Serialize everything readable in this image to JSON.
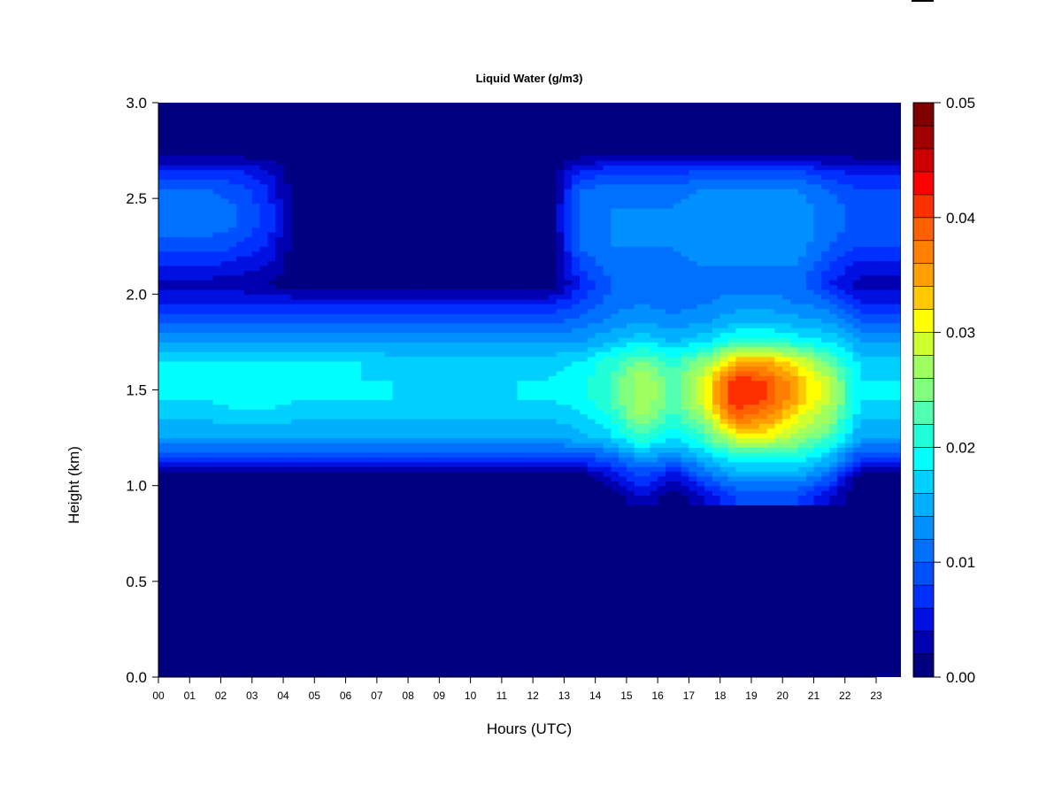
{
  "chart_data": {
    "type": "heatmap",
    "title": "Liquid Water (g/m3)",
    "xlabel": "Hours (UTC)",
    "ylabel": "Height (km)",
    "xlim": [
      0,
      23.77
    ],
    "ylim": [
      0,
      3.0
    ],
    "x_ticks": [
      "00",
      "01",
      "02",
      "03",
      "04",
      "05",
      "06",
      "07",
      "08",
      "09",
      "10",
      "11",
      "12",
      "13",
      "14",
      "15",
      "16",
      "17",
      "18",
      "19",
      "20",
      "21",
      "22",
      "23"
    ],
    "y_ticks": [
      "0.0",
      "0.5",
      "1.0",
      "1.5",
      "2.0",
      "2.5",
      "3.0"
    ],
    "colorbar": {
      "range": [
        0,
        0.05
      ],
      "step": 0.002,
      "tick_labels": [
        "0.00",
        "0.01",
        "0.02",
        "0.03",
        "0.04",
        "0.05"
      ],
      "colors": [
        "#000080",
        "#0000b0",
        "#0010e0",
        "#0030ff",
        "#0050ff",
        "#0070ff",
        "#0090ff",
        "#00b0ff",
        "#00d0ff",
        "#00ffff",
        "#20ffd8",
        "#50ffb0",
        "#80ff80",
        "#a0ff60",
        "#d0ff30",
        "#ffff00",
        "#ffc800",
        "#ffa000",
        "#ff8000",
        "#ff6000",
        "#ff3000",
        "#ff0000",
        "#cc0000",
        "#a00000",
        "#800000"
      ]
    },
    "hours": [
      0,
      1,
      2,
      3,
      4,
      5,
      6,
      7,
      8,
      9,
      10,
      11,
      12,
      13,
      14,
      15,
      16,
      17,
      18,
      19,
      20,
      21,
      22,
      23
    ],
    "heights_km": [
      0.95,
      1.05,
      1.15,
      1.25,
      1.35,
      1.45,
      1.55,
      1.65,
      1.75,
      1.85,
      1.95,
      2.05,
      2.15,
      2.25,
      2.35,
      2.45,
      2.55,
      2.65,
      2.75
    ],
    "z_by_hour": [
      [
        0,
        0,
        0.008,
        0.014,
        0.016,
        0.018,
        0.019,
        0.018,
        0.014,
        0.01,
        0.006,
        0.003,
        0.006,
        0.009,
        0.011,
        0.011,
        0.01,
        0.006,
        0
      ],
      [
        0,
        0,
        0.008,
        0.014,
        0.016,
        0.018,
        0.019,
        0.018,
        0.014,
        0.01,
        0.006,
        0.003,
        0.006,
        0.009,
        0.011,
        0.011,
        0.01,
        0.006,
        0
      ],
      [
        0,
        0,
        0.008,
        0.014,
        0.017,
        0.019,
        0.019,
        0.018,
        0.014,
        0.01,
        0.006,
        0.003,
        0.005,
        0.008,
        0.01,
        0.01,
        0.009,
        0.006,
        0
      ],
      [
        0,
        0,
        0.008,
        0.014,
        0.017,
        0.019,
        0.019,
        0.018,
        0.014,
        0.01,
        0.006,
        0.002,
        0.004,
        0.006,
        0.007,
        0.007,
        0.006,
        0.004,
        0
      ],
      [
        0,
        0,
        0.008,
        0.014,
        0.016,
        0.018,
        0.019,
        0.018,
        0.014,
        0.01,
        0.006,
        0,
        0,
        0,
        0,
        0,
        0,
        0,
        0
      ],
      [
        0,
        0,
        0.008,
        0.014,
        0.016,
        0.018,
        0.019,
        0.018,
        0.014,
        0.01,
        0.006,
        0,
        0,
        0,
        0,
        0,
        0,
        0,
        0
      ],
      [
        0,
        0,
        0.008,
        0.014,
        0.016,
        0.018,
        0.018,
        0.018,
        0.014,
        0.01,
        0.006,
        0,
        0,
        0,
        0,
        0,
        0,
        0,
        0
      ],
      [
        0,
        0,
        0.008,
        0.014,
        0.016,
        0.018,
        0.018,
        0.017,
        0.014,
        0.01,
        0.006,
        0,
        0,
        0,
        0,
        0,
        0,
        0,
        0
      ],
      [
        0,
        0,
        0.008,
        0.014,
        0.016,
        0.017,
        0.018,
        0.017,
        0.014,
        0.01,
        0.006,
        0,
        0,
        0,
        0,
        0,
        0,
        0,
        0
      ],
      [
        0,
        0,
        0.008,
        0.014,
        0.016,
        0.017,
        0.018,
        0.017,
        0.014,
        0.01,
        0.006,
        0,
        0,
        0,
        0,
        0,
        0,
        0,
        0
      ],
      [
        0,
        0,
        0.008,
        0.014,
        0.016,
        0.017,
        0.018,
        0.017,
        0.014,
        0.01,
        0.006,
        0,
        0,
        0,
        0,
        0,
        0,
        0,
        0
      ],
      [
        0,
        0,
        0.008,
        0.014,
        0.016,
        0.018,
        0.018,
        0.017,
        0.014,
        0.01,
        0.006,
        0,
        0,
        0,
        0,
        0,
        0,
        0,
        0
      ],
      [
        0,
        0,
        0.008,
        0.014,
        0.016,
        0.018,
        0.018,
        0.017,
        0.014,
        0.01,
        0.006,
        0,
        0,
        0,
        0,
        0,
        0,
        0,
        0
      ],
      [
        0,
        0,
        0.008,
        0.015,
        0.017,
        0.019,
        0.019,
        0.018,
        0.014,
        0.011,
        0.008,
        0.006,
        0.008,
        0.01,
        0.011,
        0.011,
        0.01,
        0.006,
        0
      ],
      [
        0,
        0.004,
        0.01,
        0.017,
        0.02,
        0.022,
        0.022,
        0.021,
        0.016,
        0.013,
        0.011,
        0.01,
        0.011,
        0.012,
        0.012,
        0.012,
        0.011,
        0.007,
        0
      ],
      [
        0.004,
        0.008,
        0.014,
        0.022,
        0.026,
        0.028,
        0.028,
        0.025,
        0.018,
        0.014,
        0.012,
        0.01,
        0.011,
        0.012,
        0.012,
        0.012,
        0.011,
        0.007,
        0
      ],
      [
        0,
        0.004,
        0.012,
        0.018,
        0.021,
        0.023,
        0.023,
        0.021,
        0.016,
        0.013,
        0.011,
        0.01,
        0.011,
        0.012,
        0.012,
        0.012,
        0.011,
        0.007,
        0
      ],
      [
        0.004,
        0.01,
        0.016,
        0.022,
        0.026,
        0.03,
        0.03,
        0.026,
        0.018,
        0.014,
        0.012,
        0.011,
        0.012,
        0.013,
        0.013,
        0.013,
        0.012,
        0.008,
        0
      ],
      [
        0.008,
        0.014,
        0.02,
        0.03,
        0.038,
        0.042,
        0.042,
        0.034,
        0.022,
        0.016,
        0.013,
        0.011,
        0.012,
        0.013,
        0.013,
        0.013,
        0.012,
        0.008,
        0
      ],
      [
        0.008,
        0.014,
        0.02,
        0.03,
        0.036,
        0.04,
        0.04,
        0.034,
        0.022,
        0.016,
        0.013,
        0.011,
        0.012,
        0.013,
        0.013,
        0.013,
        0.012,
        0.008,
        0
      ],
      [
        0.008,
        0.014,
        0.02,
        0.026,
        0.03,
        0.034,
        0.034,
        0.03,
        0.02,
        0.015,
        0.012,
        0.011,
        0.012,
        0.013,
        0.013,
        0.013,
        0.012,
        0.008,
        0
      ],
      [
        0.004,
        0.01,
        0.016,
        0.022,
        0.026,
        0.028,
        0.028,
        0.024,
        0.018,
        0.014,
        0.011,
        0.006,
        0.008,
        0.01,
        0.011,
        0.011,
        0.01,
        0.006,
        0
      ],
      [
        0,
        0,
        0.008,
        0.014,
        0.016,
        0.018,
        0.018,
        0.017,
        0.014,
        0.01,
        0.006,
        0.003,
        0.005,
        0.008,
        0.009,
        0.009,
        0.008,
        0.005,
        0
      ],
      [
        0,
        0,
        0.008,
        0.014,
        0.016,
        0.018,
        0.018,
        0.017,
        0.014,
        0.01,
        0.006,
        0.003,
        0.005,
        0.008,
        0.009,
        0.009,
        0.008,
        0.005,
        0
      ]
    ]
  }
}
